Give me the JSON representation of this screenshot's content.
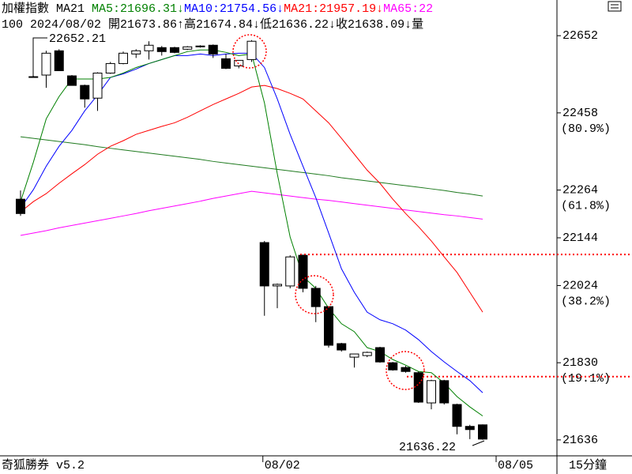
{
  "chart_data": {
    "type": "candlestick",
    "header": [
      {
        "text": "加權指數 MA21 ",
        "color": "#000000"
      },
      {
        "text": "MA5:21696.31↓",
        "color": "#008000"
      },
      {
        "text": "MA10:21754.56↓",
        "color": "#0000ff"
      },
      {
        "text": "MA21:21957.19↓",
        "color": "#ff0000"
      },
      {
        "text": "MA65:22",
        "color": "#ff00ff"
      }
    ],
    "info": "100 2024/08/02 開21673.86↑高21674.84↓低21636.22↓收21638.09↓量",
    "footer": "奇狐勝券 v5.2",
    "period": "15分鐘",
    "next_label": "08/05",
    "high_label": "22652.21",
    "low_label": "21636.22",
    "categories": [
      null,
      null,
      null,
      null,
      null,
      null,
      null,
      null,
      null,
      null,
      null,
      null,
      null,
      null,
      null,
      null,
      null,
      null,
      null,
      "08/02",
      null,
      null,
      null,
      null,
      null,
      null,
      null,
      null,
      null,
      null,
      null,
      null,
      null,
      null,
      null,
      null,
      null
    ],
    "open": [
      22241,
      22549,
      22553,
      22614,
      22551,
      22527,
      22495,
      22558,
      22582,
      22606,
      22614,
      22622,
      22622,
      22618,
      22626,
      22628,
      22594,
      22576,
      22592,
      22132,
      22023,
      22023,
      22100,
      22017,
      21971,
      21878,
      21844,
      21848,
      21868,
      21830,
      21818,
      21805,
      21729,
      21785,
      21725,
      21670,
      21673.86
    ],
    "high": [
      22263,
      22551,
      22614,
      22618,
      22553,
      22529,
      22560,
      22586,
      22612,
      22618,
      22638,
      22626,
      22624,
      22626,
      22628,
      22630,
      22606,
      22590,
      22641,
      22136,
      22029,
      22100,
      22102,
      22023,
      21971,
      21880,
      21852,
      21858,
      21870,
      21832,
      21822,
      21808,
      21787,
      21787,
      21727,
      21674,
      21674.84
    ],
    "low": [
      22199,
      22547,
      22521,
      22564,
      22527,
      22471,
      22463,
      22556,
      22580,
      22596,
      22592,
      22602,
      22608,
      22616,
      22622,
      22596,
      22568,
      22570,
      22586,
      21948,
      21967,
      22017,
      22007,
      21932,
      21868,
      21858,
      21818,
      21844,
      21830,
      21810,
      21805,
      21729,
      21713,
      21725,
      21650,
      21638,
      21636.22
    ],
    "close": [
      22205,
      22547,
      22608,
      22564,
      22527,
      22493,
      22558,
      22582,
      22608,
      22614,
      22628,
      22612,
      22610,
      22624,
      22626,
      22606,
      22570,
      22590,
      22638,
      22023,
      22027,
      22096,
      22017,
      21971,
      21874,
      21862,
      21852,
      21856,
      21832,
      21812,
      21808,
      21731,
      21785,
      21729,
      21670,
      21662,
      21638.09
    ],
    "up_color": "#ffffff",
    "down_color": "#000000",
    "series": [
      {
        "color": "#1f7a1f",
        "values": [
          22398,
          22394,
          22390,
          22386,
          22382,
          22378,
          22373,
          22369,
          22365,
          22361,
          22357,
          22353,
          22349,
          22345,
          22341,
          22336,
          22332,
          22328,
          22324,
          22320,
          22316,
          22312,
          22308,
          22304,
          22300,
          22295,
          22291,
          22287,
          22283,
          22279,
          22275,
          22271,
          22267,
          22263,
          22258,
          22254,
          22249
        ]
      },
      {
        "color": "#ff00ff",
        "values": [
          22150,
          22156,
          22162,
          22169,
          22175,
          22181,
          22187,
          22193,
          22199,
          22205,
          22212,
          22218,
          22224,
          22230,
          22236,
          22243,
          22249,
          22255,
          22261,
          22257,
          22253,
          22249,
          22245,
          22241,
          22238,
          22234,
          22230,
          22226,
          22222,
          22218,
          22214,
          22210,
          22206,
          22202,
          22199,
          22195,
          22191
        ]
      },
      {
        "color": "#ff0000",
        "values": [
          22209,
          22235,
          22255,
          22281,
          22305,
          22328,
          22354,
          22374,
          22388,
          22404,
          22414,
          22424,
          22433,
          22447,
          22463,
          22479,
          22493,
          22507,
          22523,
          22527,
          22519,
          22507,
          22493,
          22463,
          22433,
          22394,
          22354,
          22314,
          22281,
          22241,
          22205,
          22172,
          22136,
          22096,
          22057,
          22007,
          21957.19
        ]
      },
      {
        "color": "#0000ff",
        "values": [
          22219,
          22265,
          22324,
          22374,
          22414,
          22463,
          22503,
          22547,
          22556,
          22568,
          22582,
          22592,
          22602,
          22602,
          22606,
          22602,
          22606,
          22608,
          22608,
          22572,
          22493,
          22404,
          22324,
          22245,
          22156,
          22066,
          22007,
          21957,
          21938,
          21928,
          21912,
          21888,
          21858,
          21832,
          21808,
          21785,
          21754.56
        ]
      },
      {
        "color": "#008000",
        "values": [
          22235,
          22334,
          22443,
          22499,
          22543,
          22543,
          22543,
          22547,
          22558,
          22572,
          22582,
          22592,
          22602,
          22612,
          22616,
          22616,
          22610,
          22602,
          22606,
          22483,
          22305,
          22146,
          22047,
          22017,
          21967,
          21928,
          21908,
          21868,
          21858,
          21838,
          21824,
          21808,
          21805,
          21779,
          21745,
          21719,
          21696.31
        ]
      }
    ],
    "ylim": [
      21596,
      22698
    ],
    "yticks": [
      22652,
      22458,
      22264,
      22144,
      22024,
      21830,
      21636
    ],
    "retracement_labels": [
      {
        "value": 22458,
        "label": "(80.9%)"
      },
      {
        "value": 22264,
        "label": "(61.8%)"
      },
      {
        "value": 22024,
        "label": "(38.2%)"
      },
      {
        "value": 21830,
        "label": "(19.1%)"
      }
    ],
    "hlines": [
      {
        "value": 22102,
        "color": "#ff0000"
      },
      {
        "value": 21795,
        "color": "#ff0000"
      }
    ]
  }
}
